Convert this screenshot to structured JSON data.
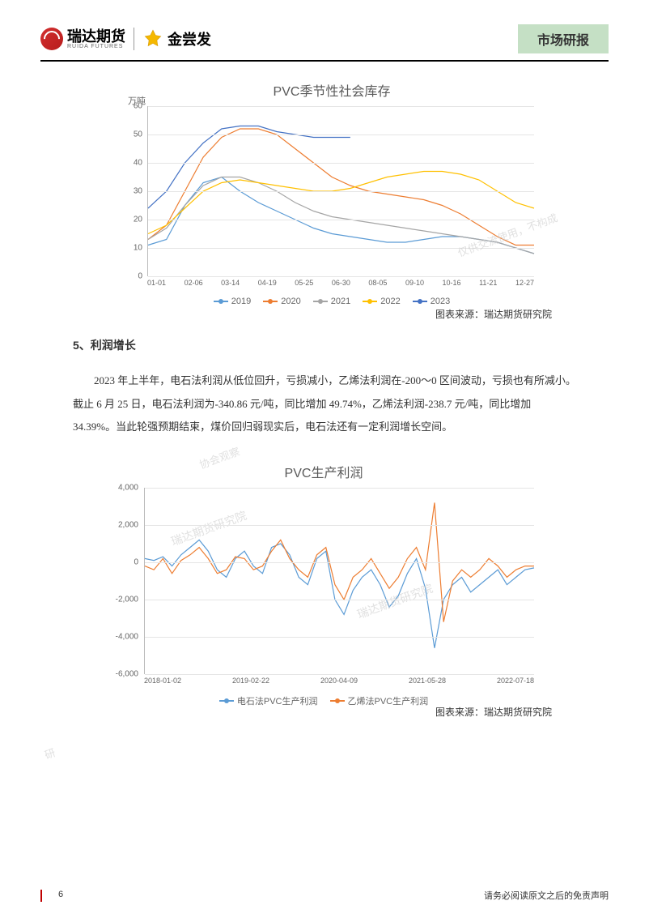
{
  "header": {
    "logo1_main": "瑞达期货",
    "logo1_sub": "RUIDA FUTURES",
    "logo2_text": "金尝发",
    "report_tag": "市场研报"
  },
  "chart1": {
    "title": "PVC季节性社会库存",
    "y_unit": "万吨",
    "ylim": [
      0,
      60
    ],
    "yticks": [
      0,
      10,
      20,
      30,
      40,
      50,
      60
    ],
    "xticks": [
      "01-01",
      "02-06",
      "03-14",
      "04-19",
      "05-25",
      "06-30",
      "08-05",
      "09-10",
      "10-16",
      "11-21",
      "12-27"
    ],
    "grid_color": "#e5e5e5",
    "series": [
      {
        "name": "2019",
        "color": "#5b9bd5",
        "data": [
          11,
          13,
          25,
          33,
          35,
          30,
          26,
          23,
          20,
          17,
          15,
          14,
          13,
          12,
          12,
          13,
          14,
          14,
          13,
          12,
          10,
          8
        ]
      },
      {
        "name": "2020",
        "color": "#ed7d31",
        "data": [
          13,
          18,
          30,
          42,
          49,
          52,
          52,
          50,
          45,
          40,
          35,
          32,
          30,
          29,
          28,
          27,
          25,
          22,
          18,
          14,
          11,
          11
        ]
      },
      {
        "name": "2021",
        "color": "#a5a5a5",
        "data": [
          13,
          17,
          25,
          32,
          35,
          35,
          33,
          30,
          26,
          23,
          21,
          20,
          19,
          18,
          17,
          16,
          15,
          14,
          13,
          12,
          10,
          8
        ]
      },
      {
        "name": "2022",
        "color": "#ffc000",
        "data": [
          15,
          18,
          24,
          30,
          33,
          34,
          33,
          32,
          31,
          30,
          30,
          31,
          33,
          35,
          36,
          37,
          37,
          36,
          34,
          30,
          26,
          24
        ]
      },
      {
        "name": "2023",
        "color": "#4472c4",
        "data": [
          24,
          30,
          40,
          47,
          52,
          53,
          53,
          51,
          50,
          49,
          49,
          49
        ]
      }
    ],
    "source": "图表来源：瑞达期货研究院"
  },
  "section": {
    "title": "5、利润增长",
    "body": "2023 年上半年，电石法利润从低位回升，亏损减小，乙烯法利润在-200～0 区间波动，亏损也有所减小。截止 6 月 25 日，电石法利润为-340.86 元/吨，同比增加 49.74%，乙烯法利润-238.7 元/吨，同比增加 34.39%。当此轮强预期结束，煤价回归弱现实后，电石法还有一定利润增长空间。"
  },
  "chart2": {
    "title": "PVC生产利润",
    "ylim": [
      -6000,
      4000
    ],
    "yticks": [
      -6000,
      -4000,
      -2000,
      0,
      2000,
      4000
    ],
    "xticks": [
      "2018-01-02",
      "2019-02-22",
      "2020-04-09",
      "2021-05-28",
      "2022-07-18"
    ],
    "grid_color": "#e5e5e5",
    "series": [
      {
        "name": "电石法PVC生产利润",
        "color": "#5b9bd5",
        "data": [
          200,
          100,
          300,
          -200,
          400,
          800,
          1200,
          600,
          -400,
          -800,
          200,
          600,
          -200,
          -600,
          800,
          1000,
          400,
          -800,
          -1200,
          200,
          600,
          -2000,
          -2800,
          -1500,
          -800,
          -400,
          -1200,
          -2400,
          -1800,
          -600,
          200,
          -1400,
          -4600,
          -2000,
          -1200,
          -800,
          -1600,
          -1200,
          -800,
          -400,
          -1200,
          -800,
          -400,
          -300
        ]
      },
      {
        "name": "乙烯法PVC生产利润",
        "color": "#ed7d31",
        "data": [
          -200,
          -400,
          200,
          -600,
          100,
          400,
          800,
          200,
          -600,
          -400,
          300,
          200,
          -400,
          -200,
          600,
          1200,
          200,
          -400,
          -800,
          400,
          800,
          -1200,
          -2000,
          -800,
          -400,
          200,
          -600,
          -1400,
          -800,
          200,
          800,
          -400,
          3200,
          -3200,
          -1000,
          -400,
          -800,
          -400,
          200,
          -200,
          -800,
          -400,
          -200,
          -200
        ]
      }
    ],
    "source": "图表来源：瑞达期货研究院"
  },
  "watermarks": {
    "w1": "瑞达期货研究院",
    "w2": "瑞达期货研究院",
    "w3": "仅供交流使用，不构成",
    "w4": "协会观察",
    "w5": "研"
  },
  "footer": {
    "page": "6",
    "disclaimer": "请务必阅读原文之后的免责声明"
  }
}
